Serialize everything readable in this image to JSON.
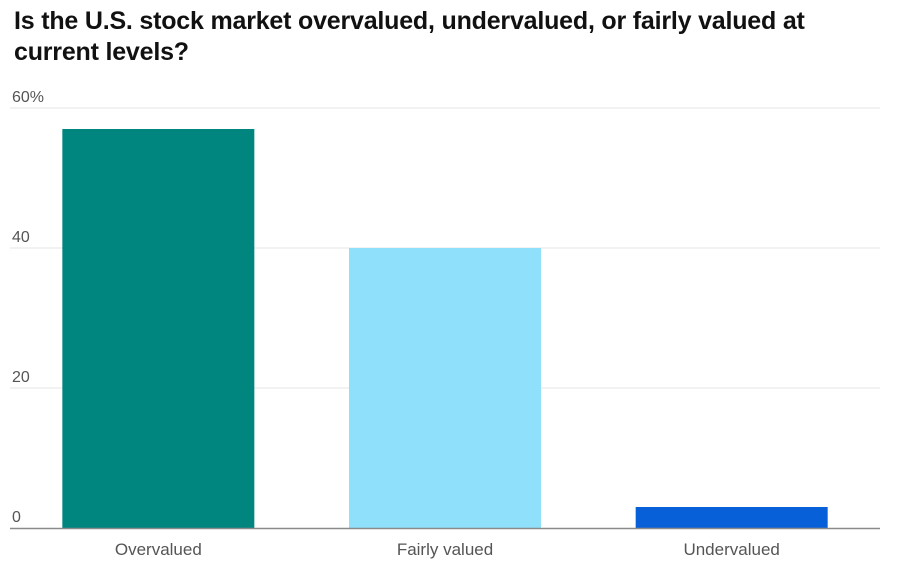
{
  "chart_data": {
    "type": "bar",
    "title": "Is the U.S. stock market overvalued, undervalued, or fairly valued at current levels?",
    "xlabel": "",
    "ylabel": "",
    "categories": [
      "Overvalued",
      "Fairly valued",
      "Undervalued"
    ],
    "values": [
      57,
      40,
      3
    ],
    "colors": [
      "#00857f",
      "#8fe0fb",
      "#0860d8"
    ],
    "ylim": [
      0,
      60
    ],
    "yticks": [
      0,
      20,
      40,
      60
    ],
    "ytick_labels": [
      "0",
      "20",
      "40",
      "60%"
    ],
    "grid": true,
    "legend": "none"
  }
}
